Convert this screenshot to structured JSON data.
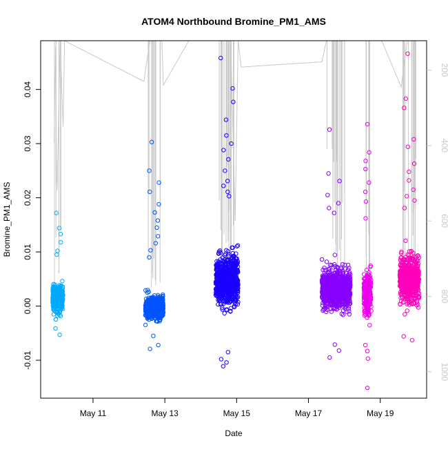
{
  "chart_data": {
    "type": "scatter",
    "title": "ATOM4 Northbound Bromine_PM1_AMS",
    "xlabel": "Date",
    "ylabel": "Bromine_PM1_AMS",
    "x_ticks": [
      "May 11",
      "May 13",
      "May 15",
      "May 17",
      "May 19"
    ],
    "x_tick_values": [
      "2018-05-11",
      "2018-05-13",
      "2018-05-15",
      "2018-05-17",
      "2018-05-19"
    ],
    "xlim": [
      "2018-05-09T13:00",
      "2018-05-20T07:00"
    ],
    "y_ticks": [
      -0.01,
      0.0,
      0.01,
      0.02,
      0.03,
      0.04
    ],
    "y_tick_labels": [
      "-0.01",
      "0.00",
      "0.01",
      "0.02",
      "0.03",
      "0.04"
    ],
    "ylim": [
      -0.017,
      0.049
    ],
    "right_axis": {
      "ticks": [
        200,
        400,
        600,
        800,
        1000
      ],
      "tick_labels": [
        "200",
        "400",
        "600",
        "800",
        "1000"
      ],
      "reversed": true,
      "range": [
        122,
        1070
      ],
      "color": "#c8c8c8"
    },
    "grid": false,
    "legend": "none",
    "series": [
      {
        "color": "#00aaff",
        "x_range": [
          "2018-05-09T21:00",
          "2018-05-10T04:00"
        ],
        "center": 0.0015,
        "spread": 0.0022,
        "outliers_y": [
          0.0172,
          0.0144,
          0.0133,
          0.0118,
          0.0102,
          0.0095,
          -0.0041,
          -0.0053
        ]
      },
      {
        "color": "#0055ff",
        "x_range": [
          "2018-05-12T11:00",
          "2018-05-12T23:00"
        ],
        "center": -0.0003,
        "spread": 0.0018,
        "outliers_y": [
          0.0303,
          0.025,
          0.0228,
          0.0211,
          0.0188,
          0.0173,
          0.0158,
          0.0145,
          0.0129,
          0.0116,
          0.0103,
          0.009,
          -0.0055,
          -0.0072,
          -0.0079
        ]
      },
      {
        "color": "#1a00ff",
        "x_range": [
          "2018-05-14T10:00",
          "2018-05-15T01:00"
        ],
        "center": 0.0048,
        "spread": 0.004,
        "outliers_y": [
          0.0458,
          0.0402,
          0.0377,
          0.0344,
          0.0315,
          0.03,
          0.0288,
          0.0271,
          0.025,
          0.0231,
          0.0222,
          0.0211,
          0.0203,
          -0.0085,
          -0.0098,
          -0.0104,
          -0.0111
        ]
      },
      {
        "color": "#8800ff",
        "x_range": [
          "2018-05-17T09:00",
          "2018-05-18T04:00"
        ],
        "center": 0.0032,
        "spread": 0.003,
        "outliers_y": [
          0.0326,
          0.0245,
          0.0231,
          0.0205,
          0.019,
          0.0181,
          0.0172,
          -0.0071,
          -0.0082,
          -0.0095
        ]
      },
      {
        "color": "#ee00ee",
        "x_range": [
          "2018-05-18T13:00",
          "2018-05-18T18:00"
        ],
        "center": 0.0022,
        "spread": 0.0035,
        "outliers_y": [
          0.0336,
          0.0284,
          0.0268,
          0.0253,
          0.0228,
          0.0211,
          0.0193,
          0.0162,
          -0.0072,
          -0.0083,
          -0.0097,
          -0.0151
        ]
      },
      {
        "color": "#ff00bb",
        "x_range": [
          "2018-05-19T13:00",
          "2018-05-20T02:00"
        ],
        "center": 0.005,
        "spread": 0.0035,
        "outliers_y": [
          0.0466,
          0.0383,
          0.0366,
          0.0308,
          0.0294,
          0.0263,
          0.0248,
          0.0232,
          0.0215,
          0.0203,
          0.0195,
          0.0181,
          -0.0063,
          -0.0056
        ]
      }
    ]
  }
}
